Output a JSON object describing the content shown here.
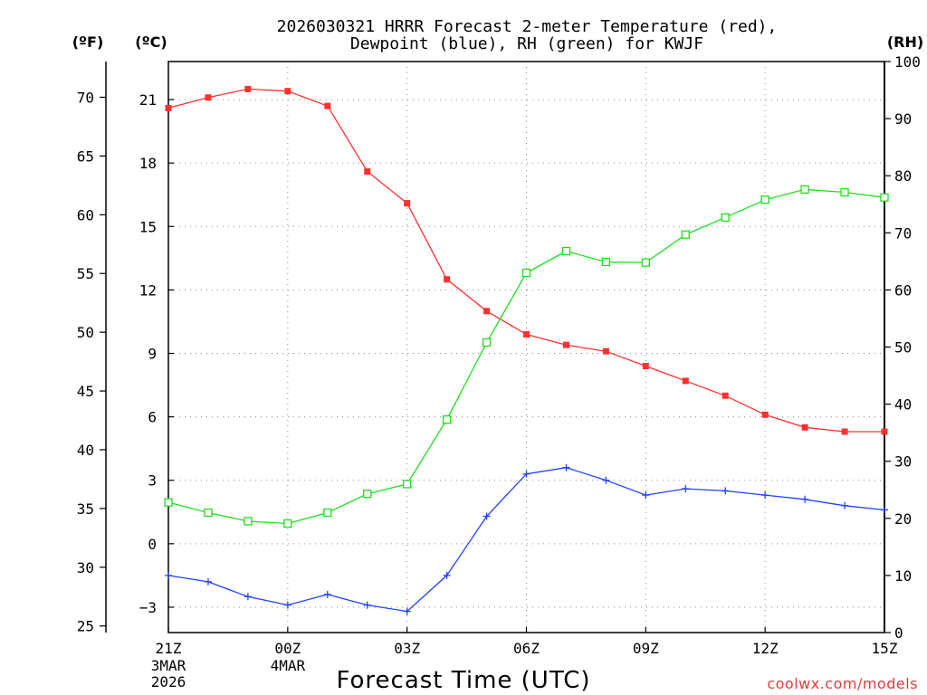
{
  "chart_data": {
    "type": "line",
    "title_line1": "2026030321 HRRR Forecast 2-meter Temperature (red),",
    "title_line2": "Dewpoint (blue), RH (green) for KWJF",
    "unit_f": "(ºF)",
    "unit_c": "(ºC)",
    "unit_rh": "(RH)",
    "xlabel": "Forecast Time (UTC)",
    "credit": "coolwx.com/models",
    "x_tick_labels": [
      "21Z",
      "00Z",
      "03Z",
      "06Z",
      "09Z",
      "12Z",
      "15Z"
    ],
    "x_tick_hours": [
      0,
      3,
      6,
      9,
      12,
      15,
      18
    ],
    "date_labels": [
      {
        "hour": 0,
        "lines": [
          "3MAR",
          "2026"
        ]
      },
      {
        "hour": 3,
        "lines": [
          "4MAR"
        ]
      }
    ],
    "x_range": [
      0,
      18
    ],
    "y_celsius": {
      "range": [
        -4.2,
        22.8
      ],
      "ticks": [
        -3,
        0,
        3,
        6,
        9,
        12,
        15,
        18,
        21
      ]
    },
    "y_fahrenheit": {
      "ticks": [
        25,
        30,
        35,
        40,
        45,
        50,
        55,
        60,
        65,
        70
      ]
    },
    "y_rh": {
      "range": [
        0,
        100
      ],
      "ticks": [
        0,
        10,
        20,
        30,
        40,
        50,
        60,
        70,
        80,
        90,
        100
      ]
    },
    "hours": [
      0,
      1,
      2,
      3,
      4,
      5,
      6,
      7,
      8,
      9,
      10,
      11,
      12,
      13,
      14,
      15,
      16,
      17,
      18
    ],
    "series": [
      {
        "name": "Temperature",
        "unit": "C",
        "axis": "celsius",
        "color": "#ff3030",
        "marker": "filled-square",
        "values": [
          20.6,
          21.1,
          21.5,
          21.4,
          20.7,
          17.6,
          16.1,
          12.5,
          11.0,
          9.9,
          9.4,
          9.1,
          8.4,
          7.7,
          7.0,
          6.1,
          5.5,
          5.3,
          5.3
        ]
      },
      {
        "name": "Dewpoint",
        "unit": "C",
        "axis": "celsius",
        "color": "#2040ff",
        "marker": "plus",
        "values": [
          -1.5,
          -1.8,
          -2.5,
          -2.9,
          -2.4,
          -2.9,
          -3.2,
          -1.5,
          1.3,
          3.3,
          3.6,
          3.0,
          2.3,
          2.6,
          2.5,
          2.3,
          2.1,
          1.8,
          1.6
        ]
      },
      {
        "name": "RH",
        "unit": "%",
        "axis": "rh",
        "color": "#20dd20",
        "marker": "open-square",
        "values": [
          22.8,
          21.0,
          19.5,
          19.1,
          21.0,
          24.3,
          26.0,
          37.3,
          50.8,
          63.0,
          66.8,
          64.9,
          64.8,
          69.7,
          72.7,
          75.8,
          77.6,
          77.1,
          76.2
        ]
      }
    ]
  }
}
